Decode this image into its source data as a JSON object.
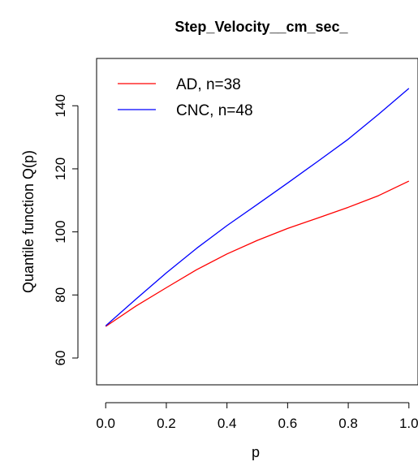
{
  "chart_data": {
    "type": "line",
    "title": "Step_Velocity__cm_sec_",
    "xlabel": "p",
    "ylabel": "Quantile function Q(p)",
    "xlim": [
      -0.03,
      1.03
    ],
    "ylim": [
      51.5,
      155
    ],
    "x_ticks": [
      0.0,
      0.2,
      0.4,
      0.6,
      0.8,
      1.0
    ],
    "x_tick_labels": [
      "0.0",
      "0.2",
      "0.4",
      "0.6",
      "0.8",
      "1.0"
    ],
    "y_ticks": [
      60,
      80,
      100,
      120,
      140
    ],
    "y_tick_labels": [
      "60",
      "80",
      "100",
      "120",
      "140"
    ],
    "grid": false,
    "legend_position": "top-left",
    "series": [
      {
        "name": "AD, n=38",
        "color": "#ff0000",
        "x": [
          0.0,
          0.1,
          0.2,
          0.3,
          0.4,
          0.5,
          0.6,
          0.7,
          0.8,
          0.9,
          1.0
        ],
        "y": [
          70.0,
          76.5,
          82.3,
          88.0,
          93.0,
          97.3,
          101.1,
          104.4,
          107.8,
          111.5,
          116.1
        ]
      },
      {
        "name": "CNC, n=48",
        "color": "#0000ff",
        "x": [
          0.0,
          0.1,
          0.2,
          0.3,
          0.4,
          0.5,
          0.6,
          0.7,
          0.8,
          0.9,
          1.0
        ],
        "y": [
          70.2,
          78.7,
          87.0,
          94.8,
          102.0,
          108.7,
          115.5,
          122.4,
          129.4,
          137.3,
          145.5
        ]
      }
    ]
  }
}
